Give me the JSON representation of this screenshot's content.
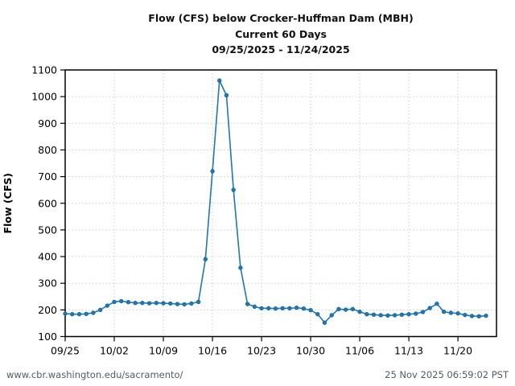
{
  "page": {
    "background": "#ffffff"
  },
  "chart_data": {
    "type": "line",
    "title": "Flow (CFS) below Crocker-Huffman Dam (MBH)",
    "subtitle": "Current 60 Days",
    "date_range": "09/25/2025 - 11/24/2025",
    "ylabel": "Flow (CFS)",
    "xlabel": "",
    "ylim": [
      100,
      1100
    ],
    "x_span_days": 61.5,
    "y_ticks": [
      100,
      200,
      300,
      400,
      500,
      600,
      700,
      800,
      900,
      1000,
      1100
    ],
    "x_ticks": [
      {
        "day": 0,
        "label": "09/25"
      },
      {
        "day": 7,
        "label": "10/02"
      },
      {
        "day": 14,
        "label": "10/09"
      },
      {
        "day": 21,
        "label": "10/16"
      },
      {
        "day": 28,
        "label": "10/23"
      },
      {
        "day": 35,
        "label": "10/30"
      },
      {
        "day": 42,
        "label": "11/06"
      },
      {
        "day": 49,
        "label": "11/13"
      },
      {
        "day": 56,
        "label": "11/20"
      }
    ],
    "grid": "dotted",
    "legend": "none",
    "colors": {
      "line": "#1f77b4",
      "marker_edge": "#1a6aa0",
      "grid": "#c9c9c9",
      "frame": "#000000",
      "text": "#000000"
    },
    "series": [
      {
        "name": "Flow (CFS)",
        "dates": [
          "09/25",
          "09/26",
          "09/27",
          "09/28",
          "09/29",
          "09/30",
          "10/01",
          "10/02",
          "10/03",
          "10/04",
          "10/05",
          "10/06",
          "10/07",
          "10/08",
          "10/09",
          "10/10",
          "10/11",
          "10/12",
          "10/13",
          "10/14",
          "10/15",
          "10/16",
          "10/17",
          "10/18",
          "10/19",
          "10/20",
          "10/21",
          "10/22",
          "10/23",
          "10/24",
          "10/25",
          "10/26",
          "10/27",
          "10/28",
          "10/29",
          "10/30",
          "10/31",
          "11/01",
          "11/02",
          "11/03",
          "11/04",
          "11/05",
          "11/06",
          "11/07",
          "11/08",
          "11/09",
          "11/10",
          "11/11",
          "11/12",
          "11/13",
          "11/14",
          "11/15",
          "11/16",
          "11/17",
          "11/18",
          "11/19",
          "11/20",
          "11/21",
          "11/22",
          "11/23",
          "11/24"
        ],
        "values": [
          186,
          184,
          184,
          185,
          189,
          200,
          216,
          230,
          233,
          229,
          226,
          226,
          225,
          226,
          225,
          224,
          222,
          221,
          224,
          230,
          390,
          720,
          1060,
          1005,
          650,
          358,
          222,
          212,
          206,
          206,
          205,
          206,
          206,
          208,
          205,
          199,
          184,
          152,
          180,
          203,
          201,
          203,
          193,
          184,
          182,
          180,
          179,
          180,
          182,
          184,
          186,
          192,
          207,
          223,
          193,
          189,
          187,
          181,
          177,
          176,
          178
        ]
      }
    ]
  },
  "footer": {
    "url": "www.cbr.washington.edu/sacramento/",
    "timestamp": "25 Nov 2025 06:59:02 PST"
  }
}
